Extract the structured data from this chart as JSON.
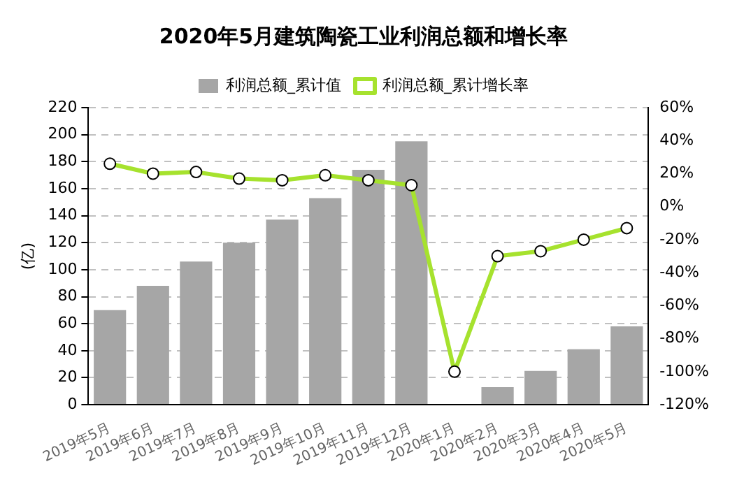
{
  "chart_data": {
    "type": "bar",
    "title": "2020年5月建筑陶瓷工业利润总额和增长率",
    "ylabel": "(亿)",
    "categories": [
      "2019年5月",
      "2019年6月",
      "2019年7月",
      "2019年8月",
      "2019年9月",
      "2019年10月",
      "2019年11月",
      "2019年12月",
      "2020年1月",
      "2020年2月",
      "2020年3月",
      "2020年4月",
      "2020年5月"
    ],
    "series": [
      {
        "name": "利润总额_累计值",
        "color": "#a6a6a6",
        "values": [
          70,
          88,
          106,
          120,
          137,
          153,
          174,
          195,
          null,
          13,
          25,
          41,
          58
        ]
      },
      {
        "name": "利润总额_累计增长率",
        "type": "line",
        "axis": "y2",
        "color": "#a6e22e",
        "marker": "circle",
        "values": [
          26,
          20,
          21,
          17,
          16,
          19,
          16,
          13,
          -100,
          -30,
          -27,
          -20,
          -13
        ]
      }
    ],
    "ylim": [
      0,
      220
    ],
    "yticks": [
      0,
      20,
      40,
      60,
      80,
      100,
      120,
      140,
      160,
      180,
      200,
      220
    ],
    "y2lim": [
      -120,
      60
    ],
    "y2ticks": [
      {
        "value": -120,
        "label": "-120%"
      },
      {
        "value": -100,
        "label": "-100%"
      },
      {
        "value": -80,
        "label": "-80%"
      },
      {
        "value": -60,
        "label": "-60%"
      },
      {
        "value": -40,
        "label": "-40%"
      },
      {
        "value": -20,
        "label": "-20%"
      },
      {
        "value": 0,
        "label": "0%"
      },
      {
        "value": 20,
        "label": "20%"
      },
      {
        "value": 40,
        "label": "40%"
      },
      {
        "value": 60,
        "label": "60%"
      }
    ],
    "grid": "y",
    "legend": "top"
  }
}
